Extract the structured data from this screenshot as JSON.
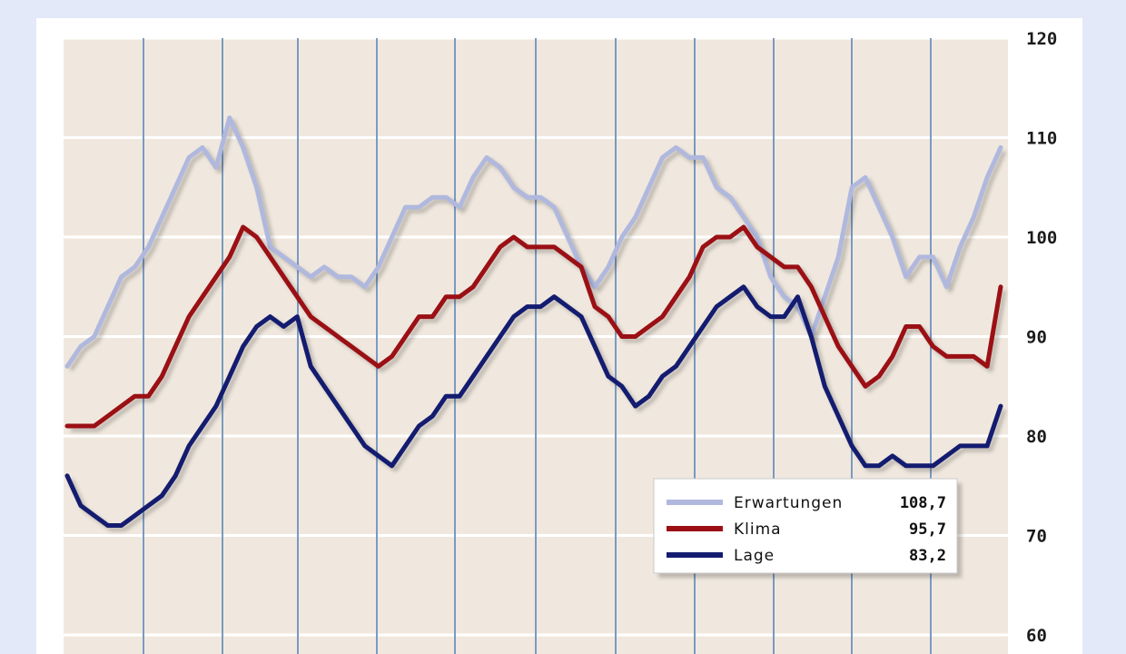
{
  "chart_data": {
    "type": "line",
    "title": "",
    "xlabel": "",
    "ylabel": "",
    "ylim": [
      60,
      120
    ],
    "yticks": [
      "120",
      "110",
      "100",
      "90",
      "80",
      "70",
      "60"
    ],
    "grid": true,
    "legend_position": "bottom-right",
    "colors": {
      "background": "#e3e9f8",
      "plot": "#f0e8de",
      "gridline": "#ffffff",
      "vertical_line": "#7a9ac2"
    },
    "series": [
      {
        "name": "Erwartungen",
        "value_label": "108,7",
        "color": "#b0b8de",
        "values": [
          87,
          89,
          90,
          93,
          96,
          97,
          99,
          102,
          105,
          108,
          109,
          107,
          112,
          109,
          105,
          99,
          98,
          97,
          96,
          97,
          96,
          96,
          95,
          97,
          100,
          103,
          103,
          104,
          104,
          103,
          106,
          108,
          107,
          105,
          104,
          104,
          103,
          100,
          97,
          95,
          97,
          100,
          102,
          105,
          108,
          109,
          108,
          108,
          105,
          104,
          102,
          100,
          96,
          94,
          93,
          90,
          94,
          98,
          105,
          106,
          103,
          100,
          96,
          98,
          98,
          95,
          99,
          102,
          106,
          109
        ]
      },
      {
        "name": "Klima",
        "value_label": "95,7",
        "color": "#9b1015",
        "values": [
          81,
          81,
          81,
          82,
          83,
          84,
          84,
          86,
          89,
          92,
          94,
          96,
          98,
          101,
          100,
          98,
          96,
          94,
          92,
          91,
          90,
          89,
          88,
          87,
          88,
          90,
          92,
          92,
          94,
          94,
          95,
          97,
          99,
          100,
          99,
          99,
          99,
          98,
          97,
          93,
          92,
          90,
          90,
          91,
          92,
          94,
          96,
          99,
          100,
          100,
          101,
          99,
          98,
          97,
          97,
          95,
          92,
          89,
          87,
          85,
          86,
          88,
          91,
          91,
          89,
          88,
          88,
          88,
          87,
          95
        ]
      },
      {
        "name": "Lage",
        "value_label": "83,2",
        "color": "#141c70",
        "values": [
          76,
          73,
          72,
          71,
          71,
          72,
          73,
          74,
          76,
          79,
          81,
          83,
          86,
          89,
          91,
          92,
          91,
          92,
          87,
          85,
          83,
          81,
          79,
          78,
          77,
          79,
          81,
          82,
          84,
          84,
          86,
          88,
          90,
          92,
          93,
          93,
          94,
          93,
          92,
          89,
          86,
          85,
          83,
          84,
          86,
          87,
          89,
          91,
          93,
          94,
          95,
          93,
          92,
          92,
          94,
          90,
          85,
          82,
          79,
          77,
          77,
          78,
          77,
          77,
          77,
          78,
          79,
          79,
          79,
          83
        ]
      }
    ]
  }
}
